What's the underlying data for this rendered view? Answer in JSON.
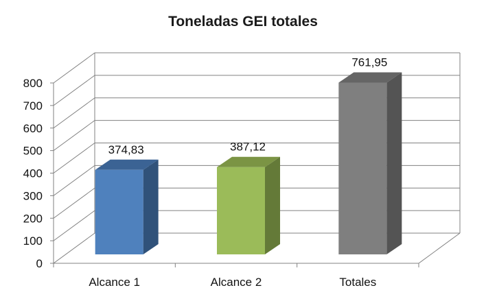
{
  "chart_data": {
    "type": "bar",
    "title": "Toneladas GEI totales",
    "categories": [
      "Alcance 1",
      "Alcance 2",
      "Totales"
    ],
    "values": [
      374.83,
      387.12,
      761.95
    ],
    "value_labels": [
      "374,83",
      "387,12",
      "761,95"
    ],
    "ylim": [
      0,
      800
    ],
    "yticks": [
      "0",
      "100",
      "200",
      "300",
      "400",
      "500",
      "600",
      "700",
      "800"
    ],
    "grid": true,
    "legend": "none",
    "style": "3d",
    "colors": [
      {
        "front": "#4f81bd",
        "side": "#30527a",
        "top": "#3b6394"
      },
      {
        "front": "#9bbb59",
        "side": "#647a38",
        "top": "#7b9444"
      },
      {
        "front": "#7f7f7f",
        "side": "#545454",
        "top": "#656565"
      }
    ]
  }
}
